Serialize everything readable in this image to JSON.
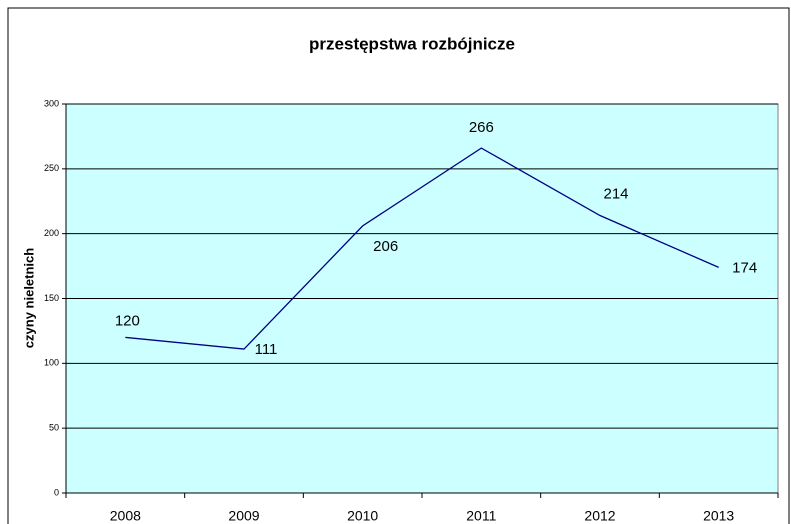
{
  "chart_data": {
    "type": "line",
    "title": "przestępstwa rozbójnicze",
    "y_label": "czyny nieletnich",
    "categories": [
      "2008",
      "2009",
      "2010",
      "2011",
      "2012",
      "2013"
    ],
    "values": [
      120,
      111,
      206,
      266,
      214,
      174
    ],
    "color": "#000080",
    "ylim": [
      0,
      300
    ],
    "yticks": [
      0,
      50,
      100,
      150,
      200,
      250,
      300
    ],
    "grid": true
  }
}
